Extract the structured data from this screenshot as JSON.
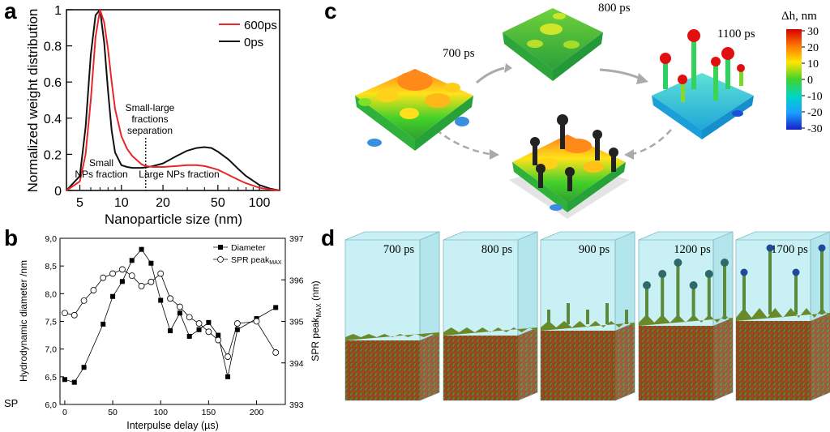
{
  "panels": {
    "a": "a",
    "b": "b",
    "c": "c",
    "d": "d"
  },
  "chart_data": [
    {
      "type": "line",
      "panel": "a",
      "xscale": "log",
      "xlabel": "Nanoparticle size (nm)",
      "ylabel": "Normalized weight distribution",
      "xlim": [
        4,
        140
      ],
      "ylim": [
        0,
        1
      ],
      "xticks": [
        5,
        10,
        20,
        50,
        100
      ],
      "xticklabels": [
        "5",
        "10",
        "20",
        "50",
        "100"
      ],
      "yticks": [
        0,
        0.2,
        0.4,
        0.6,
        0.8,
        1
      ],
      "yticklabels": [
        "0",
        "0.2",
        "0.4",
        "0.6",
        "0.8",
        "1"
      ],
      "legend": "top-right",
      "series": [
        {
          "name": "600ps",
          "color": "#e8262b",
          "x": [
            4,
            5,
            5.5,
            6,
            6.5,
            7,
            7.5,
            8,
            8.5,
            9,
            10,
            11,
            12,
            14,
            15,
            17,
            20,
            25,
            30,
            35,
            40,
            45,
            50,
            60,
            70,
            80,
            100,
            120,
            140
          ],
          "y": [
            0.0,
            0.05,
            0.2,
            0.5,
            0.85,
            1.0,
            0.93,
            0.78,
            0.6,
            0.45,
            0.3,
            0.23,
            0.19,
            0.145,
            0.135,
            0.13,
            0.13,
            0.135,
            0.14,
            0.14,
            0.135,
            0.125,
            0.115,
            0.085,
            0.06,
            0.04,
            0.015,
            0.005,
            0.0
          ]
        },
        {
          "name": "0ps",
          "color": "#111111",
          "x": [
            4,
            5,
            5.5,
            6,
            6.5,
            7,
            7.5,
            8,
            8.5,
            9,
            10,
            11,
            12,
            14,
            15,
            17,
            20,
            25,
            30,
            35,
            40,
            45,
            50,
            60,
            70,
            80,
            100,
            120,
            140
          ],
          "y": [
            0.0,
            0.08,
            0.35,
            0.75,
            0.97,
            1.0,
            0.82,
            0.55,
            0.33,
            0.21,
            0.14,
            0.13,
            0.125,
            0.125,
            0.128,
            0.135,
            0.15,
            0.19,
            0.22,
            0.235,
            0.24,
            0.235,
            0.215,
            0.17,
            0.12,
            0.08,
            0.03,
            0.01,
            0.0
          ]
        }
      ],
      "separation_x": 15,
      "annotations": {
        "separation": [
          "Small-large",
          "fractions",
          "separation"
        ],
        "small": [
          "Small",
          "NPs fraction"
        ],
        "large": "Large NPs fraction"
      }
    },
    {
      "type": "line",
      "panel": "b",
      "xlabel_prefix": "Interpulse delay (",
      "xlabel_unit": "µs",
      "xlabel_suffix": ")",
      "ylabel": "Hydrodynamic diameter /nm",
      "y2label": "SPR peak",
      "y2label_sub": "MAX",
      "y2label_unit": " (nm)",
      "xlim": [
        -5,
        230
      ],
      "ylim": [
        6.0,
        9.0
      ],
      "y2lim": [
        393,
        397
      ],
      "xticks": [
        0,
        50,
        100,
        150,
        200
      ],
      "yticks": [
        6.0,
        6.5,
        7.0,
        7.5,
        8.0,
        8.5,
        9.0
      ],
      "yticklabels": [
        "6,0",
        "6,5",
        "7,0",
        "7,5",
        "8,0",
        "8,5",
        "9,0"
      ],
      "y2ticks": [
        393,
        394,
        395,
        396,
        397
      ],
      "sp_label": "SP",
      "legend": "top-right",
      "series": [
        {
          "name": "Diameter",
          "marker": "square",
          "axis": "left",
          "x": [
            0,
            10,
            20,
            40,
            50,
            60,
            70,
            80,
            90,
            100,
            110,
            120,
            130,
            140,
            150,
            160,
            170,
            180,
            200,
            220
          ],
          "y": [
            6.45,
            6.4,
            6.67,
            7.45,
            7.95,
            8.22,
            8.6,
            8.8,
            8.55,
            7.88,
            7.33,
            7.65,
            7.23,
            7.35,
            7.48,
            7.25,
            6.5,
            7.35,
            7.55,
            7.75
          ]
        },
        {
          "name": "SPR peak",
          "sub": "MAX",
          "marker": "circle",
          "axis": "right",
          "x": [
            0,
            10,
            20,
            30,
            40,
            50,
            60,
            70,
            80,
            90,
            100,
            110,
            120,
            130,
            140,
            150,
            160,
            170,
            180,
            200,
            220
          ],
          "y": [
            395.2,
            395.15,
            395.5,
            395.75,
            396.05,
            396.15,
            396.25,
            396.1,
            395.85,
            395.95,
            396.15,
            395.55,
            395.35,
            395.1,
            394.95,
            394.75,
            394.55,
            394.15,
            394.95,
            395.0,
            394.25
          ]
        }
      ]
    }
  ],
  "panel_c": {
    "colorbar_title": "Δh, nm",
    "colorbar_ticks": [
      "30",
      "20",
      "10",
      "0",
      "-10",
      "-20",
      "-30"
    ],
    "time_labels": [
      "700 ps",
      "800 ps",
      "1100 ps"
    ]
  },
  "panel_d": {
    "time_labels": [
      "700 ps",
      "800 ps",
      "900 ps",
      "1200 ps",
      "1700 ps"
    ]
  },
  "colors": {
    "red": "#e8262b",
    "black": "#111111",
    "sky": "#bfeff3",
    "green": "#3fa83a"
  }
}
